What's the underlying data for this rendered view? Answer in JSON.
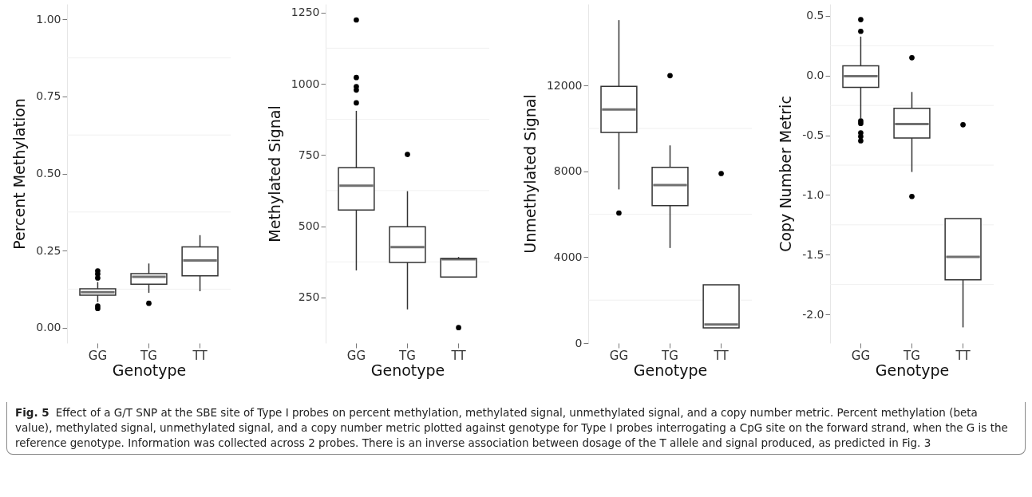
{
  "chart_data": [
    {
      "type": "box",
      "xlabel": "Genotype",
      "ylabel": "Percent Methylation",
      "categories": [
        "GG",
        "TG",
        "TT"
      ],
      "ylim": [
        -0.05,
        1.05
      ],
      "yticks": [
        {
          "value": 0,
          "label": "0.00"
        },
        0.25,
        {
          "value": 0.5,
          "label": "0.50"
        },
        0.75,
        {
          "value": 1,
          "label": "1.00"
        }
      ],
      "grid": "y",
      "boxes": [
        {
          "low": 0.083,
          "q1": 0.105,
          "median": 0.115,
          "q3": 0.126,
          "high": 0.148,
          "outliers": [
            0.184,
            0.174,
            0.161,
            0.07,
            0.062
          ]
        },
        {
          "low": 0.113,
          "q1": 0.141,
          "median": 0.165,
          "q3": 0.175,
          "high": 0.208,
          "outliers": [
            0.079
          ]
        },
        {
          "low": 0.118,
          "q1": 0.168,
          "median": 0.218,
          "q3": 0.262,
          "high": 0.3
        }
      ],
      "annotations": [
        "Fig. 5",
        "Effect of a G/T SNP at the SBE site of Type I probes on percent methylation, methylated signal, unmethylated signal, and a copy number metric. Percent methylation (beta value), methylated signal, unmethylated signal, and a copy number metric plotted against genotype for Type I probes interrogating a CpG site on the forward strand, when the G is the reference genotype. Information was collected across 2 probes. There is an inverse association between dosage of the T allele and signal produced, as predicted in Fig. 3"
      ]
    },
    {
      "type": "box",
      "xlabel": "Genotype",
      "ylabel": "Methylated Signal",
      "categories": [
        "GG",
        "TG",
        "TT"
      ],
      "ylim": [
        90,
        1280
      ],
      "yticks": [
        250,
        500,
        750,
        1000,
        1250
      ],
      "grid": "y",
      "boxes": [
        {
          "low": 345,
          "q1": 557,
          "median": 642,
          "q3": 705,
          "high": 905,
          "outliers": [
            1224,
            1022,
            990,
            978,
            933
          ]
        },
        {
          "low": 208,
          "q1": 373,
          "median": 427,
          "q3": 498,
          "high": 623,
          "outliers": [
            752
          ]
        },
        {
          "low": 322,
          "q1": 322,
          "median": 384,
          "q3": 387,
          "high": 392,
          "outliers": [
            144
          ]
        }
      ]
    },
    {
      "type": "box",
      "xlabel": "Genotype",
      "ylabel": "Unmethylated Signal",
      "categories": [
        "GG",
        "TG",
        "TT"
      ],
      "ylim": [
        0,
        15800
      ],
      "yticks": [
        0,
        4000,
        8000,
        12000
      ],
      "grid": "y",
      "boxes": [
        {
          "low": 7160,
          "q1": 9810,
          "median": 10880,
          "q3": 11960,
          "high": 15050,
          "outliers": [
            6060
          ]
        },
        {
          "low": 4430,
          "q1": 6400,
          "median": 7360,
          "q3": 8190,
          "high": 9210,
          "outliers": [
            12460
          ]
        },
        {
          "low": 710,
          "q1": 710,
          "median": 860,
          "q3": 2710,
          "high": 2710,
          "outliers": [
            7900
          ]
        }
      ]
    },
    {
      "type": "box",
      "xlabel": "Genotype",
      "ylabel": "Copy Number Metric",
      "categories": [
        "GG",
        "TG",
        "TT"
      ],
      "ylim": [
        -2.24,
        0.6
      ],
      "yticks": [
        0.5,
        {
          "value": 0,
          "label": "0.0"
        },
        -0.5,
        {
          "value": -1,
          "label": "-1.0"
        },
        -1.5,
        {
          "value": -2,
          "label": "-2.0"
        }
      ],
      "grid": "y",
      "boxes": [
        {
          "low": -0.358,
          "q1": -0.099,
          "median": -0.005,
          "q3": 0.082,
          "high": 0.327,
          "outliers": [
            0.469,
            0.371,
            -0.38,
            -0.4,
            -0.48,
            -0.51,
            -0.546
          ]
        },
        {
          "low": -0.807,
          "q1": -0.522,
          "median": -0.405,
          "q3": -0.274,
          "high": -0.137,
          "outliers": [
            0.15,
            -1.012
          ]
        },
        {
          "low": -2.109,
          "q1": -1.711,
          "median": -1.519,
          "q3": -1.198,
          "high": -1.198,
          "outliers": [
            -0.411
          ]
        }
      ]
    }
  ]
}
